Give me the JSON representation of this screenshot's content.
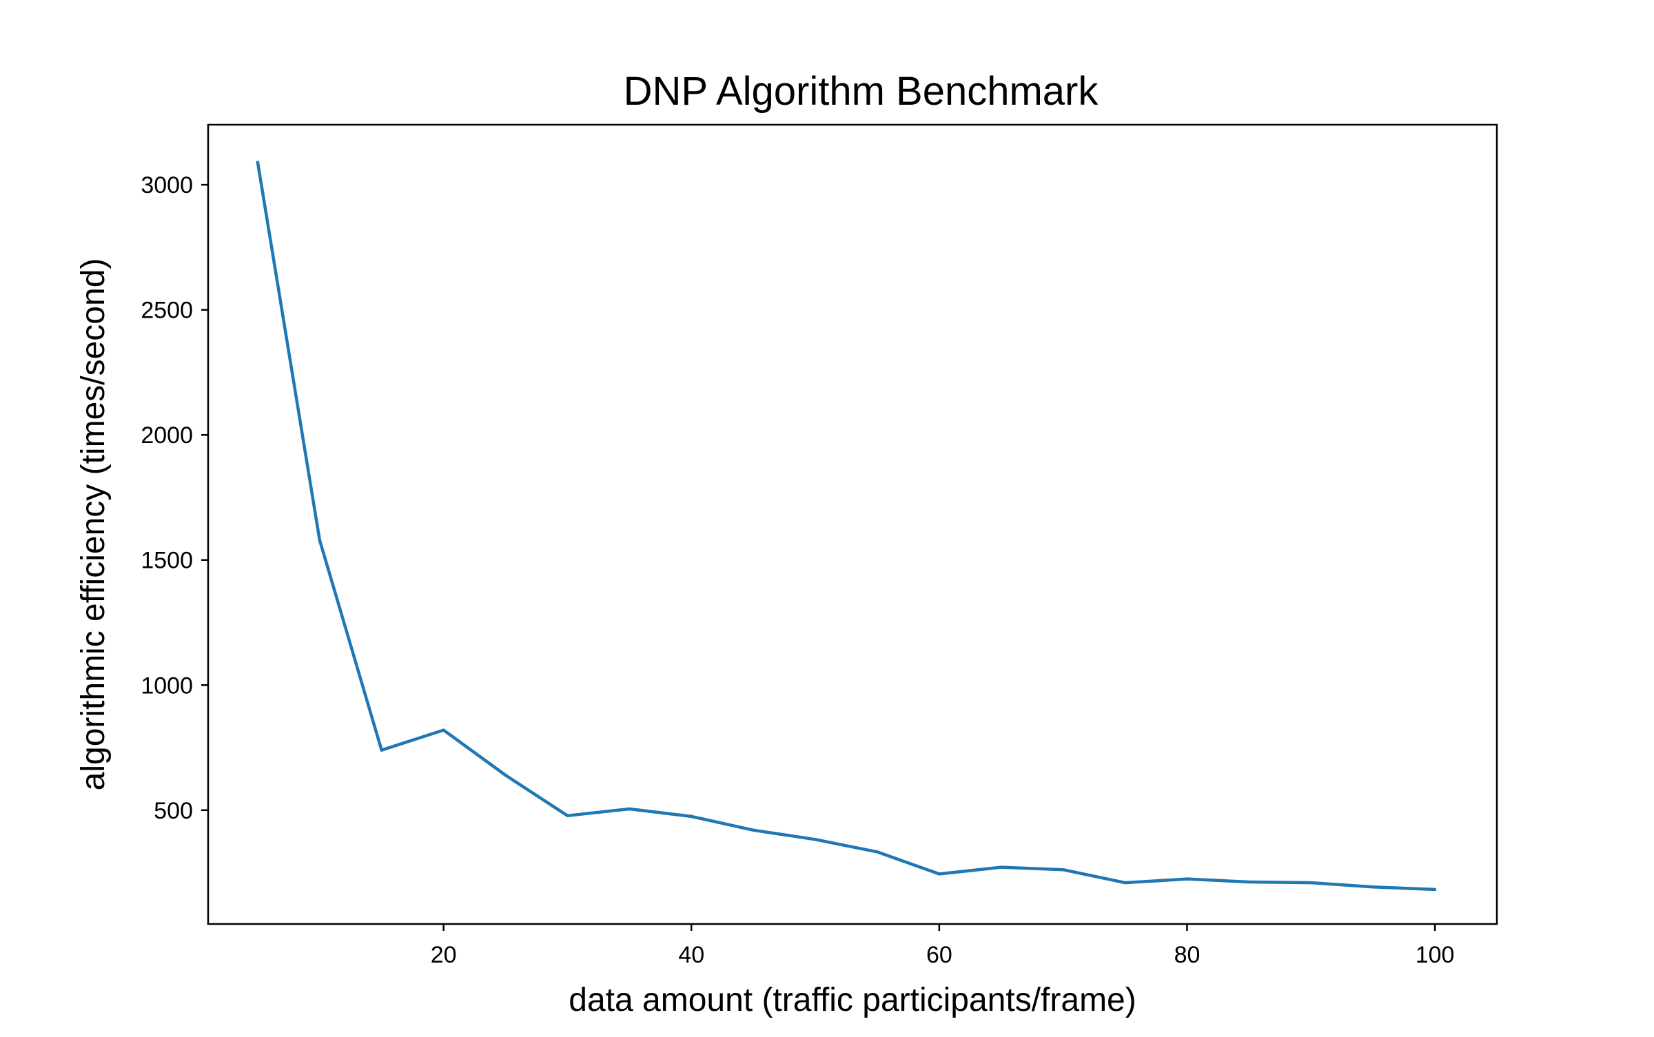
{
  "chart_data": {
    "type": "line",
    "title": "DNP Algorithm Benchmark",
    "xlabel": "data amount (traffic participants/frame)",
    "ylabel": "algorithmic efficiency (times/second)",
    "xlim": [
      1,
      105
    ],
    "ylim": [
      45,
      3240
    ],
    "xticks": [
      20,
      40,
      60,
      80,
      100
    ],
    "yticks": [
      500,
      1000,
      1500,
      2000,
      2500,
      3000
    ],
    "xtick_labels": [
      "20",
      "40",
      "60",
      "80",
      "100"
    ],
    "ytick_labels": [
      "500",
      "1000",
      "1500",
      "2000",
      "2500",
      "3000"
    ],
    "grid": false,
    "series": [
      {
        "color": "#1f77b4",
        "x": [
          5,
          10,
          15,
          20,
          25,
          30,
          35,
          40,
          45,
          50,
          55,
          60,
          65,
          70,
          75,
          80,
          85,
          90,
          95,
          100
        ],
        "values": [
          3090,
          1580,
          740,
          820,
          640,
          478,
          505,
          475,
          420,
          383,
          333,
          245,
          272,
          262,
          210,
          225,
          213,
          210,
          193,
          183
        ]
      }
    ]
  }
}
